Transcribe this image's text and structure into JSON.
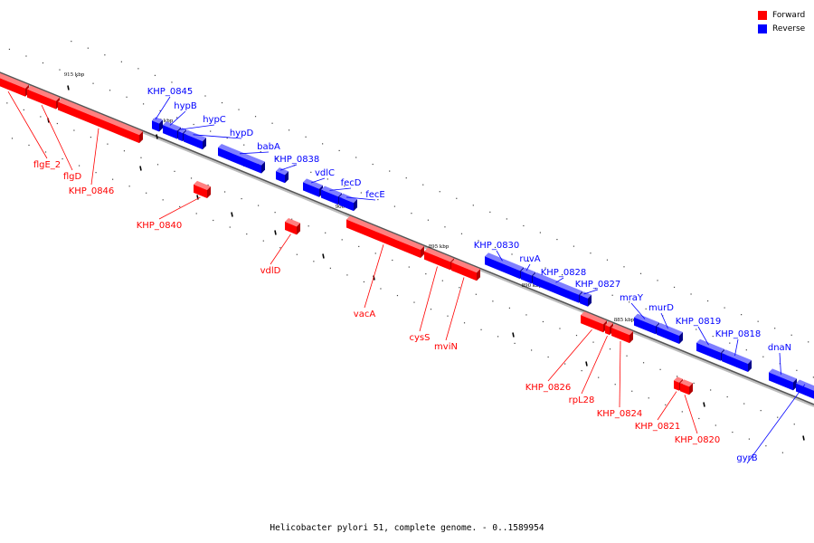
{
  "legend": {
    "forward": {
      "label": "Forward",
      "color": "#ff0000"
    },
    "reverse": {
      "label": "Reverse",
      "color": "#0000ff"
    }
  },
  "caption": "Helicobacter pylori 51, complete genome. - 0..1589954",
  "chart_data": {
    "type": "genome-map",
    "strand_colors": {
      "forward": "#ff0000",
      "reverse": "#0000ff"
    },
    "ticks": [
      "915 kbp",
      "910 kbp",
      "905 kbp",
      "900 kbp",
      "895 kbp",
      "890 kbp",
      "885 kbp",
      "880 kbp"
    ],
    "genes": [
      {
        "name": "KHP_0845",
        "strand": "reverse"
      },
      {
        "name": "hypB",
        "strand": "reverse"
      },
      {
        "name": "hypC",
        "strand": "reverse"
      },
      {
        "name": "hypD",
        "strand": "reverse"
      },
      {
        "name": "babA",
        "strand": "reverse"
      },
      {
        "name": "KHP_0838",
        "strand": "reverse"
      },
      {
        "name": "vdlC",
        "strand": "reverse"
      },
      {
        "name": "fecD",
        "strand": "reverse"
      },
      {
        "name": "fecE",
        "strand": "reverse"
      },
      {
        "name": "KHP_0830",
        "strand": "reverse"
      },
      {
        "name": "ruvA",
        "strand": "reverse"
      },
      {
        "name": "KHP_0828",
        "strand": "reverse"
      },
      {
        "name": "KHP_0827",
        "strand": "reverse"
      },
      {
        "name": "mraY",
        "strand": "reverse"
      },
      {
        "name": "murD",
        "strand": "reverse"
      },
      {
        "name": "KHP_0819",
        "strand": "reverse"
      },
      {
        "name": "KHP_0818",
        "strand": "reverse"
      },
      {
        "name": "dnaN",
        "strand": "reverse"
      },
      {
        "name": "gyrB",
        "strand": "reverse"
      },
      {
        "name": "flgE_2",
        "strand": "forward"
      },
      {
        "name": "flgD",
        "strand": "forward"
      },
      {
        "name": "KHP_0846",
        "strand": "forward"
      },
      {
        "name": "KHP_0840",
        "strand": "forward"
      },
      {
        "name": "vdlD",
        "strand": "forward"
      },
      {
        "name": "vacA",
        "strand": "forward"
      },
      {
        "name": "cysS",
        "strand": "forward"
      },
      {
        "name": "mviN",
        "strand": "forward"
      },
      {
        "name": "KHP_0826",
        "strand": "forward"
      },
      {
        "name": "rpL28",
        "strand": "forward"
      },
      {
        "name": "KHP_0824",
        "strand": "forward"
      },
      {
        "name": "KHP_0821",
        "strand": "forward"
      },
      {
        "name": "KHP_0820",
        "strand": "forward"
      }
    ]
  }
}
